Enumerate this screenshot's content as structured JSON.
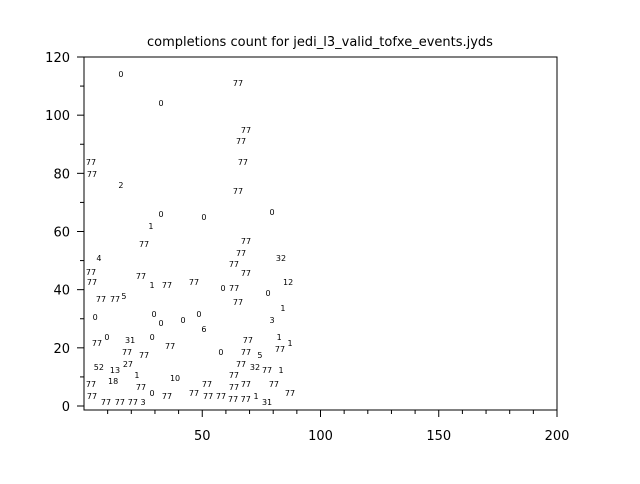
{
  "chart_data": {
    "type": "scatter",
    "title": "completions count for jedi_l3_valid_tofxe_events.jyds",
    "xlabel": "",
    "ylabel": "",
    "xlim": [
      0,
      200
    ],
    "ylim": [
      0,
      120
    ],
    "x_ticks": [
      "50",
      "100",
      "150",
      "200"
    ],
    "x_tick_values": [
      50,
      100,
      150,
      200
    ],
    "y_ticks": [
      "0",
      "20",
      "40",
      "60",
      "80",
      "100",
      "120"
    ],
    "y_tick_values": [
      0,
      20,
      40,
      60,
      80,
      100,
      120
    ],
    "grid": false,
    "marker": "text-label",
    "points": [
      {
        "x": 15.6,
        "y": 114.2,
        "label": "0"
      },
      {
        "x": 65.1,
        "y": 111.1,
        "label": "77"
      },
      {
        "x": 32.6,
        "y": 104.2,
        "label": "0"
      },
      {
        "x": 68.5,
        "y": 94.9,
        "label": "77"
      },
      {
        "x": 66.4,
        "y": 91.1,
        "label": "77"
      },
      {
        "x": 1.7,
        "y": 83.9,
        "label": "77"
      },
      {
        "x": 2.1,
        "y": 82.9,
        "label": "77"
      },
      {
        "x": 67.2,
        "y": 83.9,
        "label": "77"
      },
      {
        "x": 15.6,
        "y": 76.0,
        "label": "2"
      },
      {
        "x": 65.1,
        "y": 73.9,
        "label": "77"
      },
      {
        "x": 32.6,
        "y": 66.0,
        "label": "0"
      },
      {
        "x": 50.7,
        "y": 65.0,
        "label": "0"
      },
      {
        "x": 79.5,
        "y": 66.7,
        "label": "0"
      },
      {
        "x": 28.3,
        "y": 61.9,
        "label": "1"
      },
      {
        "x": 68.5,
        "y": 56.7,
        "label": "77"
      },
      {
        "x": 25.4,
        "y": 55.7,
        "label": "77"
      },
      {
        "x": 6.3,
        "y": 50.9,
        "label": "4"
      },
      {
        "x": 66.4,
        "y": 52.6,
        "label": "77"
      },
      {
        "x": 83.3,
        "y": 50.9,
        "label": "32"
      },
      {
        "x": 63.4,
        "y": 48.8,
        "label": "77"
      },
      {
        "x": 1.7,
        "y": 46.1,
        "label": "77"
      },
      {
        "x": 2.1,
        "y": 44.7,
        "label": "77"
      },
      {
        "x": 67.2,
        "y": 45.7,
        "label": "77"
      },
      {
        "x": 24.1,
        "y": 44.7,
        "label": "77"
      },
      {
        "x": 27.5,
        "y": 41.6,
        "label": "1"
      },
      {
        "x": 35.1,
        "y": 41.6,
        "label": "77"
      },
      {
        "x": 46.5,
        "y": 42.6,
        "label": "77"
      },
      {
        "x": 86.3,
        "y": 42.6,
        "label": "12"
      },
      {
        "x": 58.8,
        "y": 40.6,
        "label": "0"
      },
      {
        "x": 62.2,
        "y": 40.6,
        "label": "77"
      },
      {
        "x": 77.8,
        "y": 38.9,
        "label": "0"
      },
      {
        "x": 7.2,
        "y": 36.8,
        "label": "77"
      },
      {
        "x": 10.6,
        "y": 36.8,
        "label": "77"
      },
      {
        "x": 15.6,
        "y": 37.8,
        "label": "5"
      },
      {
        "x": 65.1,
        "y": 35.8,
        "label": "77"
      },
      {
        "x": 84.1,
        "y": 33.7,
        "label": "1"
      },
      {
        "x": 4.7,
        "y": 30.6,
        "label": "0"
      },
      {
        "x": 29.6,
        "y": 31.6,
        "label": "0"
      },
      {
        "x": 32.6,
        "y": 28.5,
        "label": "0"
      },
      {
        "x": 41.9,
        "y": 29.6,
        "label": "0"
      },
      {
        "x": 48.6,
        "y": 31.6,
        "label": "0"
      },
      {
        "x": 79.5,
        "y": 29.6,
        "label": "3"
      },
      {
        "x": 50.7,
        "y": 26.5,
        "label": "6"
      },
      {
        "x": 9.7,
        "y": 23.7,
        "label": "0"
      },
      {
        "x": 19.5,
        "y": 22.7,
        "label": "31"
      },
      {
        "x": 28.8,
        "y": 23.7,
        "label": "0"
      },
      {
        "x": 5.5,
        "y": 21.7,
        "label": "77"
      },
      {
        "x": 82.5,
        "y": 23.7,
        "label": "1"
      },
      {
        "x": 69.3,
        "y": 22.7,
        "label": "77"
      },
      {
        "x": 87.1,
        "y": 21.7,
        "label": "1"
      },
      {
        "x": 85.4,
        "y": 20.6,
        "label": "77"
      },
      {
        "x": 18.2,
        "y": 19.6,
        "label": "77"
      },
      {
        "x": 36.4,
        "y": 20.6,
        "label": "77"
      },
      {
        "x": 68.5,
        "y": 19.6,
        "label": "77"
      },
      {
        "x": 25.4,
        "y": 17.5,
        "label": "77"
      },
      {
        "x": 57.9,
        "y": 18.6,
        "label": "0"
      },
      {
        "x": 74.4,
        "y": 17.5,
        "label": "5"
      },
      {
        "x": 6.3,
        "y": 13.4,
        "label": "52"
      },
      {
        "x": 13.1,
        "y": 12.4,
        "label": "13"
      },
      {
        "x": 17.3,
        "y": 14.4,
        "label": "27"
      },
      {
        "x": 66.4,
        "y": 14.4,
        "label": "77"
      },
      {
        "x": 72.3,
        "y": 14.4,
        "label": "32"
      },
      {
        "x": 73.6,
        "y": 12.4,
        "label": "77"
      },
      {
        "x": 83.3,
        "y": 12.4,
        "label": "1"
      },
      {
        "x": 22.4,
        "y": 10.7,
        "label": "1"
      },
      {
        "x": 38.5,
        "y": 9.6,
        "label": "10"
      },
      {
        "x": 63.4,
        "y": 10.7,
        "label": "77"
      },
      {
        "x": 12.3,
        "y": 8.6,
        "label": "18"
      },
      {
        "x": 1.7,
        "y": 7.6,
        "label": "77"
      },
      {
        "x": 2.1,
        "y": 6.5,
        "label": "77"
      },
      {
        "x": 67.2,
        "y": 7.6,
        "label": "77"
      },
      {
        "x": 80.3,
        "y": 7.6,
        "label": "77"
      },
      {
        "x": 24.1,
        "y": 6.5,
        "label": "77"
      },
      {
        "x": 27.5,
        "y": 4.5,
        "label": "0"
      },
      {
        "x": 35.1,
        "y": 3.4,
        "label": "77"
      },
      {
        "x": 31.3,
        "y": 1.4,
        "label": "3"
      },
      {
        "x": 46.5,
        "y": 4.5,
        "label": "77"
      },
      {
        "x": 47.4,
        "y": 3.4,
        "label": "77"
      },
      {
        "x": 52.0,
        "y": 3.4,
        "label": "77"
      },
      {
        "x": 55.4,
        "y": 3.4,
        "label": "77"
      },
      {
        "x": 60.5,
        "y": 2.4,
        "label": "77"
      },
      {
        "x": 64.6,
        "y": 2.4,
        "label": "77"
      },
      {
        "x": 64.7,
        "y": 4.5,
        "label": "77"
      },
      {
        "x": 71.5,
        "y": 3.4,
        "label": "1"
      },
      {
        "x": 77.4,
        "y": 0.3,
        "label": "31"
      },
      {
        "x": 87.1,
        "y": 4.5,
        "label": "77"
      },
      {
        "x": 1.7,
        "y": -0.7,
        "label": "77"
      },
      {
        "x": 10.1,
        "y": -0.7,
        "label": "77"
      },
      {
        "x": 15.6,
        "y": -0.7,
        "label": "77"
      }
    ]
  }
}
